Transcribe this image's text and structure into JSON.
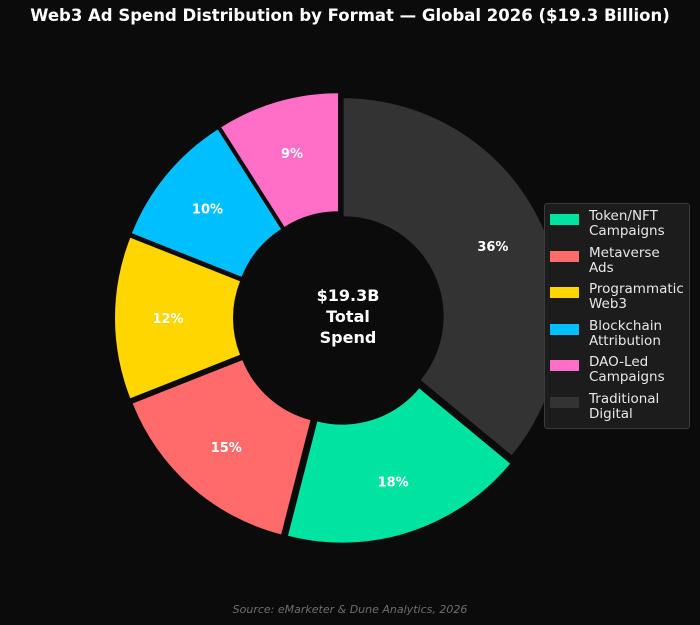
{
  "chart_data": {
    "type": "pie",
    "style": "donut",
    "title": "Web3 Ad Spend Distribution by Format — Global 2026 ($19.3 Billion)",
    "center_label": [
      "$19.3B",
      "Total",
      "Spend"
    ],
    "categories": [
      "Token/NFT Campaigns",
      "Metaverse Ads",
      "Programmatic Web3",
      "Blockchain Attribution",
      "DAO-Led Campaigns",
      "Traditional Digital"
    ],
    "values": [
      18,
      15,
      12,
      10,
      9,
      36
    ],
    "value_labels": [
      "18%",
      "15%",
      "12%",
      "10%",
      "9%",
      "36%"
    ],
    "colors": [
      "#00e3a1",
      "#ff6b6b",
      "#ffd600",
      "#00bfff",
      "#ff6ec7",
      "#333333"
    ],
    "legend_labels": [
      [
        "Token/NFT",
        "Campaigns"
      ],
      [
        "Metaverse",
        "Ads"
      ],
      [
        "Programmatic",
        "Web3"
      ],
      [
        "Blockchain",
        "Attribution"
      ],
      [
        "DAO-Led",
        "Campaigns"
      ],
      [
        "Traditional",
        "Digital"
      ]
    ],
    "legend_position": "right",
    "source": "Source: eMarketer & Dune Analytics, 2026"
  }
}
